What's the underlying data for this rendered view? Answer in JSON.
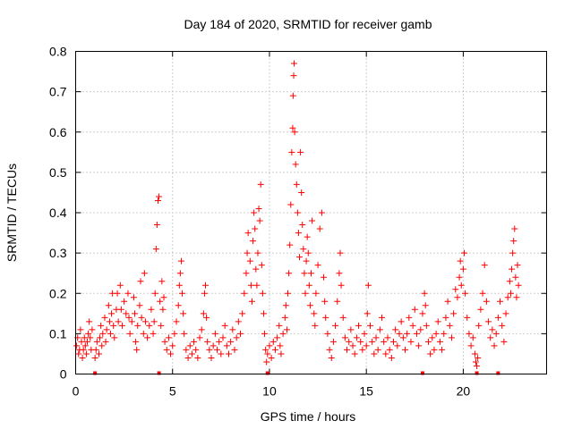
{
  "chart_data": {
    "type": "scatter",
    "title": "Day 184 of 2020, SRMTID for receiver gamb",
    "xlabel": "GPS time / hours",
    "ylabel": "SRMTID / TECUs",
    "xlim": [
      0,
      24.3
    ],
    "ylim": [
      0,
      0.8
    ],
    "x_ticks": [
      0,
      5,
      10,
      15,
      20
    ],
    "x_tick_labels": [
      "0",
      "5",
      "10",
      "15",
      "20"
    ],
    "y_ticks": [
      0,
      0.1,
      0.2,
      0.3,
      0.4,
      0.5,
      0.6,
      0.7,
      0.8
    ],
    "y_tick_labels": [
      "0",
      "0.1",
      "0.2",
      "0.3",
      "0.4",
      "0.5",
      "0.6",
      "0.7",
      "0.8"
    ],
    "grid": true,
    "marker": "+",
    "marker_color": "#ff0000",
    "legend": "none",
    "series": [
      {
        "name": "SRMTID",
        "points": [
          [
            0.05,
            0.07
          ],
          [
            0.1,
            0.09
          ],
          [
            0.15,
            0.05
          ],
          [
            0.2,
            0.06
          ],
          [
            0.25,
            0.11
          ],
          [
            0.3,
            0.08
          ],
          [
            0.35,
            0.04
          ],
          [
            0.4,
            0.06
          ],
          [
            0.45,
            0.09
          ],
          [
            0.5,
            0.07
          ],
          [
            0.55,
            0.05
          ],
          [
            0.6,
            0.08
          ],
          [
            0.65,
            0.1
          ],
          [
            0.7,
            0.13
          ],
          [
            0.75,
            0.09
          ],
          [
            0.8,
            0.06
          ],
          [
            0.85,
            0.11
          ],
          [
            1.0,
            0.04
          ],
          [
            1.05,
            0.06
          ],
          [
            1.1,
            0.08
          ],
          [
            1.2,
            0.05
          ],
          [
            1.25,
            0.09
          ],
          [
            1.3,
            0.12
          ],
          [
            1.35,
            0.07
          ],
          [
            1.4,
            0.1
          ],
          [
            1.5,
            0.14
          ],
          [
            1.55,
            0.08
          ],
          [
            1.6,
            0.11
          ],
          [
            1.7,
            0.17
          ],
          [
            1.75,
            0.13
          ],
          [
            1.8,
            0.1
          ],
          [
            1.85,
            0.15
          ],
          [
            1.9,
            0.2
          ],
          [
            1.95,
            0.12
          ],
          [
            2.0,
            0.09
          ],
          [
            2.1,
            0.16
          ],
          [
            2.15,
            0.2
          ],
          [
            2.2,
            0.13
          ],
          [
            2.3,
            0.22
          ],
          [
            2.35,
            0.16
          ],
          [
            2.4,
            0.12
          ],
          [
            2.5,
            0.18
          ],
          [
            2.6,
            0.15
          ],
          [
            2.7,
            0.2
          ],
          [
            2.75,
            0.14
          ],
          [
            2.8,
            0.1
          ],
          [
            2.9,
            0.13
          ],
          [
            3.0,
            0.19
          ],
          [
            3.05,
            0.15
          ],
          [
            3.1,
            0.08
          ],
          [
            3.15,
            0.06
          ],
          [
            3.2,
            0.12
          ],
          [
            3.3,
            0.17
          ],
          [
            3.35,
            0.23
          ],
          [
            3.4,
            0.14
          ],
          [
            3.5,
            0.1
          ],
          [
            3.55,
            0.25
          ],
          [
            3.6,
            0.13
          ],
          [
            3.7,
            0.09
          ],
          [
            3.8,
            0.12
          ],
          [
            3.9,
            0.16
          ],
          [
            4.0,
            0.1
          ],
          [
            4.05,
            0.13
          ],
          [
            4.1,
            0.2
          ],
          [
            4.15,
            0.31
          ],
          [
            4.2,
            0.37
          ],
          [
            4.25,
            0.43
          ],
          [
            4.3,
            0.44
          ],
          [
            4.35,
            0.18
          ],
          [
            4.4,
            0.12
          ],
          [
            4.45,
            0.23
          ],
          [
            4.5,
            0.16
          ],
          [
            4.55,
            0.19
          ],
          [
            4.6,
            0.08
          ],
          [
            4.7,
            0.06
          ],
          [
            4.8,
            0.09
          ],
          [
            4.9,
            0.05
          ],
          [
            5.0,
            0.07
          ],
          [
            5.1,
            0.1
          ],
          [
            5.2,
            0.13
          ],
          [
            5.3,
            0.17
          ],
          [
            5.35,
            0.22
          ],
          [
            5.4,
            0.25
          ],
          [
            5.45,
            0.28
          ],
          [
            5.5,
            0.2
          ],
          [
            5.55,
            0.15
          ],
          [
            5.6,
            0.1
          ],
          [
            5.7,
            0.06
          ],
          [
            5.8,
            0.04
          ],
          [
            5.9,
            0.07
          ],
          [
            6.0,
            0.05
          ],
          [
            6.1,
            0.08
          ],
          [
            6.2,
            0.06
          ],
          [
            6.3,
            0.04
          ],
          [
            6.4,
            0.09
          ],
          [
            6.5,
            0.11
          ],
          [
            6.6,
            0.15
          ],
          [
            6.65,
            0.2
          ],
          [
            6.7,
            0.22
          ],
          [
            6.75,
            0.14
          ],
          [
            6.8,
            0.08
          ],
          [
            6.9,
            0.06
          ],
          [
            7.0,
            0.04
          ],
          [
            7.1,
            0.07
          ],
          [
            7.2,
            0.1
          ],
          [
            7.3,
            0.06
          ],
          [
            7.4,
            0.08
          ],
          [
            7.5,
            0.05
          ],
          [
            7.6,
            0.09
          ],
          [
            7.7,
            0.12
          ],
          [
            7.8,
            0.07
          ],
          [
            7.9,
            0.05
          ],
          [
            8.0,
            0.08
          ],
          [
            8.1,
            0.11
          ],
          [
            8.2,
            0.06
          ],
          [
            8.3,
            0.09
          ],
          [
            8.4,
            0.13
          ],
          [
            8.5,
            0.1
          ],
          [
            8.6,
            0.15
          ],
          [
            8.7,
            0.2
          ],
          [
            8.8,
            0.25
          ],
          [
            8.85,
            0.3
          ],
          [
            8.9,
            0.35
          ],
          [
            9.0,
            0.28
          ],
          [
            9.05,
            0.22
          ],
          [
            9.1,
            0.18
          ],
          [
            9.15,
            0.33
          ],
          [
            9.2,
            0.4
          ],
          [
            9.25,
            0.36
          ],
          [
            9.3,
            0.26
          ],
          [
            9.35,
            0.22
          ],
          [
            9.4,
            0.3
          ],
          [
            9.45,
            0.41
          ],
          [
            9.5,
            0.38
          ],
          [
            9.55,
            0.47
          ],
          [
            9.6,
            0.27
          ],
          [
            9.65,
            0.2
          ],
          [
            9.7,
            0.15
          ],
          [
            9.75,
            0.1
          ],
          [
            9.8,
            0.06
          ],
          [
            9.85,
            0.03
          ],
          [
            9.9,
            0.05
          ],
          [
            10.0,
            0.07
          ],
          [
            10.1,
            0.04
          ],
          [
            10.2,
            0.08
          ],
          [
            10.3,
            0.06
          ],
          [
            10.4,
            0.09
          ],
          [
            10.5,
            0.12
          ],
          [
            10.55,
            0.07
          ],
          [
            10.6,
            0.05
          ],
          [
            10.7,
            0.1
          ],
          [
            10.8,
            0.14
          ],
          [
            10.85,
            0.17
          ],
          [
            10.9,
            0.11
          ],
          [
            10.95,
            0.2
          ],
          [
            11.0,
            0.25
          ],
          [
            11.05,
            0.32
          ],
          [
            11.1,
            0.42
          ],
          [
            11.15,
            0.55
          ],
          [
            11.2,
            0.61
          ],
          [
            11.22,
            0.69
          ],
          [
            11.25,
            0.74
          ],
          [
            11.27,
            0.77
          ],
          [
            11.3,
            0.6
          ],
          [
            11.35,
            0.52
          ],
          [
            11.4,
            0.47
          ],
          [
            11.45,
            0.4
          ],
          [
            11.5,
            0.35
          ],
          [
            11.55,
            0.29
          ],
          [
            11.6,
            0.55
          ],
          [
            11.65,
            0.45
          ],
          [
            11.7,
            0.37
          ],
          [
            11.75,
            0.31
          ],
          [
            11.8,
            0.25
          ],
          [
            11.85,
            0.2
          ],
          [
            11.9,
            0.28
          ],
          [
            11.95,
            0.34
          ],
          [
            12.0,
            0.3
          ],
          [
            12.05,
            0.22
          ],
          [
            12.1,
            0.17
          ],
          [
            12.15,
            0.25
          ],
          [
            12.2,
            0.38
          ],
          [
            12.3,
            0.15
          ],
          [
            12.35,
            0.12
          ],
          [
            12.4,
            0.2
          ],
          [
            12.5,
            0.27
          ],
          [
            12.6,
            0.36
          ],
          [
            12.7,
            0.4
          ],
          [
            12.8,
            0.24
          ],
          [
            12.85,
            0.18
          ],
          [
            12.9,
            0.14
          ],
          [
            13.0,
            0.1
          ],
          [
            13.1,
            0.06
          ],
          [
            13.2,
            0.04
          ],
          [
            13.3,
            0.08
          ],
          [
            13.4,
            0.12
          ],
          [
            13.5,
            0.18
          ],
          [
            13.6,
            0.25
          ],
          [
            13.65,
            0.3
          ],
          [
            13.7,
            0.22
          ],
          [
            13.8,
            0.14
          ],
          [
            13.9,
            0.09
          ],
          [
            14.0,
            0.06
          ],
          [
            14.1,
            0.08
          ],
          [
            14.2,
            0.11
          ],
          [
            14.3,
            0.07
          ],
          [
            14.4,
            0.05
          ],
          [
            14.5,
            0.09
          ],
          [
            14.6,
            0.12
          ],
          [
            14.7,
            0.08
          ],
          [
            14.8,
            0.06
          ],
          [
            14.9,
            0.1
          ],
          [
            15.0,
            0.07
          ],
          [
            15.05,
            0.15
          ],
          [
            15.1,
            0.22
          ],
          [
            15.2,
            0.12
          ],
          [
            15.3,
            0.08
          ],
          [
            15.4,
            0.05
          ],
          [
            15.5,
            0.09
          ],
          [
            15.6,
            0.06
          ],
          [
            15.7,
            0.11
          ],
          [
            15.8,
            0.14
          ],
          [
            15.9,
            0.08
          ],
          [
            16.0,
            0.05
          ],
          [
            16.1,
            0.09
          ],
          [
            16.2,
            0.06
          ],
          [
            16.3,
            0.04
          ],
          [
            16.4,
            0.08
          ],
          [
            16.5,
            0.11
          ],
          [
            16.6,
            0.07
          ],
          [
            16.7,
            0.1
          ],
          [
            16.8,
            0.13
          ],
          [
            16.9,
            0.09
          ],
          [
            17.0,
            0.06
          ],
          [
            17.1,
            0.1
          ],
          [
            17.2,
            0.14
          ],
          [
            17.3,
            0.08
          ],
          [
            17.4,
            0.12
          ],
          [
            17.5,
            0.16
          ],
          [
            17.6,
            0.1
          ],
          [
            17.7,
            0.07
          ],
          [
            17.8,
            0.11
          ],
          [
            17.9,
            0.15
          ],
          [
            18.0,
            0.2
          ],
          [
            18.05,
            0.17
          ],
          [
            18.1,
            0.12
          ],
          [
            18.2,
            0.08
          ],
          [
            18.3,
            0.05
          ],
          [
            18.4,
            0.09
          ],
          [
            18.5,
            0.06
          ],
          [
            18.6,
            0.1
          ],
          [
            18.7,
            0.13
          ],
          [
            18.8,
            0.08
          ],
          [
            18.9,
            0.06
          ],
          [
            19.0,
            0.1
          ],
          [
            19.1,
            0.14
          ],
          [
            19.2,
            0.18
          ],
          [
            19.3,
            0.12
          ],
          [
            19.4,
            0.09
          ],
          [
            19.5,
            0.15
          ],
          [
            19.6,
            0.21
          ],
          [
            19.7,
            0.19
          ],
          [
            19.8,
            0.24
          ],
          [
            19.85,
            0.28
          ],
          [
            19.9,
            0.22
          ],
          [
            20.0,
            0.26
          ],
          [
            20.05,
            0.3
          ],
          [
            20.1,
            0.2
          ],
          [
            20.2,
            0.14
          ],
          [
            20.3,
            0.1
          ],
          [
            20.4,
            0.07
          ],
          [
            20.5,
            0.09
          ],
          [
            20.6,
            0.05
          ],
          [
            20.65,
            0.03
          ],
          [
            20.7,
            0.02
          ],
          [
            20.75,
            0.04
          ],
          [
            20.8,
            0.12
          ],
          [
            20.9,
            0.16
          ],
          [
            21.0,
            0.2
          ],
          [
            21.1,
            0.27
          ],
          [
            21.2,
            0.18
          ],
          [
            21.3,
            0.13
          ],
          [
            21.4,
            0.09
          ],
          [
            21.5,
            0.11
          ],
          [
            21.6,
            0.07
          ],
          [
            21.7,
            0.1
          ],
          [
            21.8,
            0.14
          ],
          [
            21.9,
            0.18
          ],
          [
            22.0,
            0.12
          ],
          [
            22.1,
            0.08
          ],
          [
            22.2,
            0.15
          ],
          [
            22.3,
            0.19
          ],
          [
            22.4,
            0.23
          ],
          [
            22.45,
            0.2
          ],
          [
            22.5,
            0.26
          ],
          [
            22.55,
            0.3
          ],
          [
            22.6,
            0.33
          ],
          [
            22.65,
            0.36
          ],
          [
            22.7,
            0.24
          ],
          [
            22.75,
            0.19
          ],
          [
            22.8,
            0.27
          ],
          [
            22.85,
            0.22
          ]
        ]
      }
    ],
    "gap_markers_x": [
      1.0,
      4.3,
      9.9,
      17.9,
      20.7,
      21.8
    ]
  }
}
